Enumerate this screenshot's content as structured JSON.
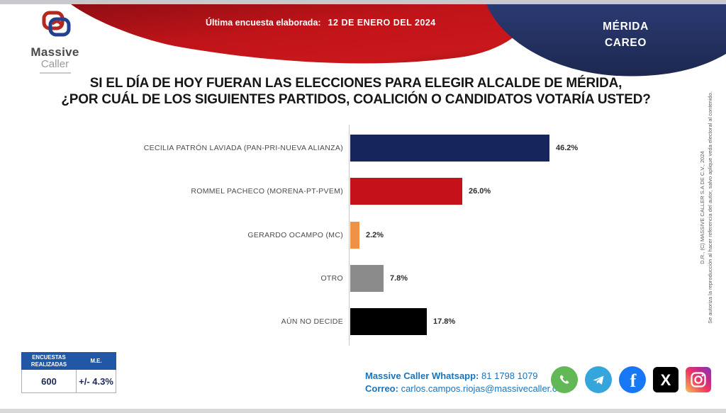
{
  "header": {
    "logo": {
      "name": "Massive",
      "name2": "Caller"
    },
    "banner": {
      "label": "Última encuesta elaborada:",
      "date": "12 DE ENERO DEL 2024"
    },
    "ribbon": {
      "line1": "MÉRIDA",
      "line2": "CAREO"
    }
  },
  "title": {
    "line1": "SI EL DÍA DE HOY FUERAN LAS ELECCIONES PARA ELEGIR ALCALDE DE MÉRIDA,",
    "line2": "¿POR CUÁL DE LOS SIGUIENTES PARTIDOS, COALICIÓN O CANDIDATOS VOTARÍA USTED?"
  },
  "chart_data": {
    "type": "bar",
    "orientation": "horizontal",
    "categories": [
      "CECILIA PATRÓN LAVIADA (PAN-PRI-NUEVA ALIANZA)",
      "ROMMEL PACHECO (MORENA-PT-PVEM)",
      "GERARDO OCAMPO (MC)",
      "OTRO",
      "AÚN NO DECIDE"
    ],
    "values": [
      46.2,
      26.0,
      2.2,
      7.8,
      17.8
    ],
    "value_labels": [
      "46.2%",
      "26.0%",
      "2.2%",
      "7.8%",
      "17.8%"
    ],
    "colors": [
      "#16265c",
      "#c5121a",
      "#ef9246",
      "#8b8b8b",
      "#000000"
    ],
    "xlim": [
      0,
      50
    ],
    "grid": false,
    "legend": false
  },
  "stats": {
    "col1_header": "ENCUESTAS REALIZADAS",
    "col2_header": "M.E.",
    "col1_value": "600",
    "col2_value": "+/- 4.3%"
  },
  "contact": {
    "whatsapp_label": "Massive Caller Whatsapp:",
    "whatsapp_number": "81 1798 1079",
    "email_label": "Correo:",
    "email": "carlos.campos.riojas@massivecaller.com"
  },
  "social_icons": [
    "whatsapp",
    "telegram",
    "facebook",
    "x",
    "instagram"
  ],
  "copyright": {
    "line1": "D.R., (C) MASSIVE CALLER S.A DE C.V., 2024",
    "line2": "Se autoriza la reproducción al hacer referencia del autor, salvo aplique veda electoral al contenido."
  },
  "colors": {
    "banner_red": "#b01116",
    "ribbon_navy": "#253063",
    "table_header_blue": "#2257a5",
    "contact_blue": "#1b74ba",
    "whatsapp_green": "#62b757",
    "telegram_blue": "#35a6dc",
    "facebook_blue": "#1877f2",
    "x_black": "#000000"
  }
}
